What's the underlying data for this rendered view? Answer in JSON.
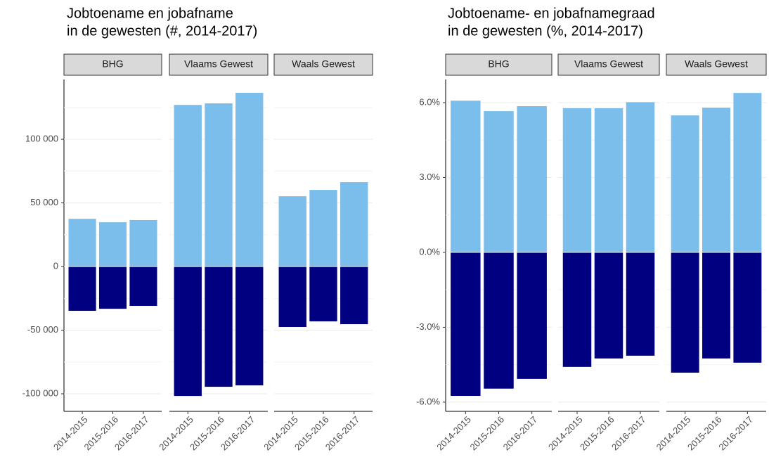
{
  "chart_data": [
    {
      "type": "bar",
      "title": [
        "Jobtoename en jobafname",
        "in de gewesten (#, 2014-2017)"
      ],
      "facets": [
        "BHG",
        "Vlaams Gewest",
        "Waals Gewest"
      ],
      "categories": [
        "2014-2015",
        "2015-2016",
        "2016-2017"
      ],
      "series": [
        {
          "color": "#7bbeeb",
          "values": [
            [
              37500,
              34800,
              36500
            ],
            [
              127000,
              128200,
              136500
            ],
            [
              55200,
              60200,
              66300
            ]
          ]
        },
        {
          "color": "#000080",
          "values": [
            [
              -34800,
              -33200,
              -30900
            ],
            [
              -101700,
              -94500,
              -93400
            ],
            [
              -47500,
              -43100,
              -45300
            ]
          ]
        }
      ],
      "ylim": [
        -113800,
        147000
      ],
      "yticks": [
        {
          "value": -100000,
          "label": "-100 000"
        },
        {
          "value": -50000,
          "label": "-50 000"
        },
        0,
        {
          "value": 50000,
          "label": "50 000"
        },
        {
          "value": 100000,
          "label": "100 000"
        }
      ],
      "minor_yticks": [
        -75000,
        -25000,
        25000,
        75000,
        125000
      ],
      "grid": true
    },
    {
      "type": "bar",
      "title": [
        "Jobtoename- en jobafnamegraad",
        "in de gewesten (%, 2014-2017)"
      ],
      "facets": [
        "BHG",
        "Vlaams Gewest",
        "Waals Gewest"
      ],
      "categories": [
        "2014-2015",
        "2015-2016",
        "2016-2017"
      ],
      "series": [
        {
          "color": "#7bbeeb",
          "values": [
            [
              6.08,
              5.66,
              5.86
            ],
            [
              5.78,
              5.78,
              6.02
            ],
            [
              5.49,
              5.8,
              6.39
            ]
          ]
        },
        {
          "color": "#000080",
          "values": [
            [
              -5.75,
              -5.46,
              -5.07
            ],
            [
              -4.59,
              -4.25,
              -4.14
            ],
            [
              -4.82,
              -4.25,
              -4.42
            ]
          ]
        }
      ],
      "ylim": [
        -6.37,
        6.93
      ],
      "yticks": [
        {
          "value": -6,
          "label": "-6.0%"
        },
        {
          "value": -3,
          "label": "-3.0%"
        },
        {
          "value": 0,
          "label": "0.0%"
        },
        {
          "value": 3,
          "label": "3.0%"
        },
        {
          "value": 6,
          "label": "6.0%"
        }
      ],
      "minor_yticks": [
        -4.5,
        -1.5,
        1.5,
        4.5
      ],
      "grid": true
    }
  ]
}
